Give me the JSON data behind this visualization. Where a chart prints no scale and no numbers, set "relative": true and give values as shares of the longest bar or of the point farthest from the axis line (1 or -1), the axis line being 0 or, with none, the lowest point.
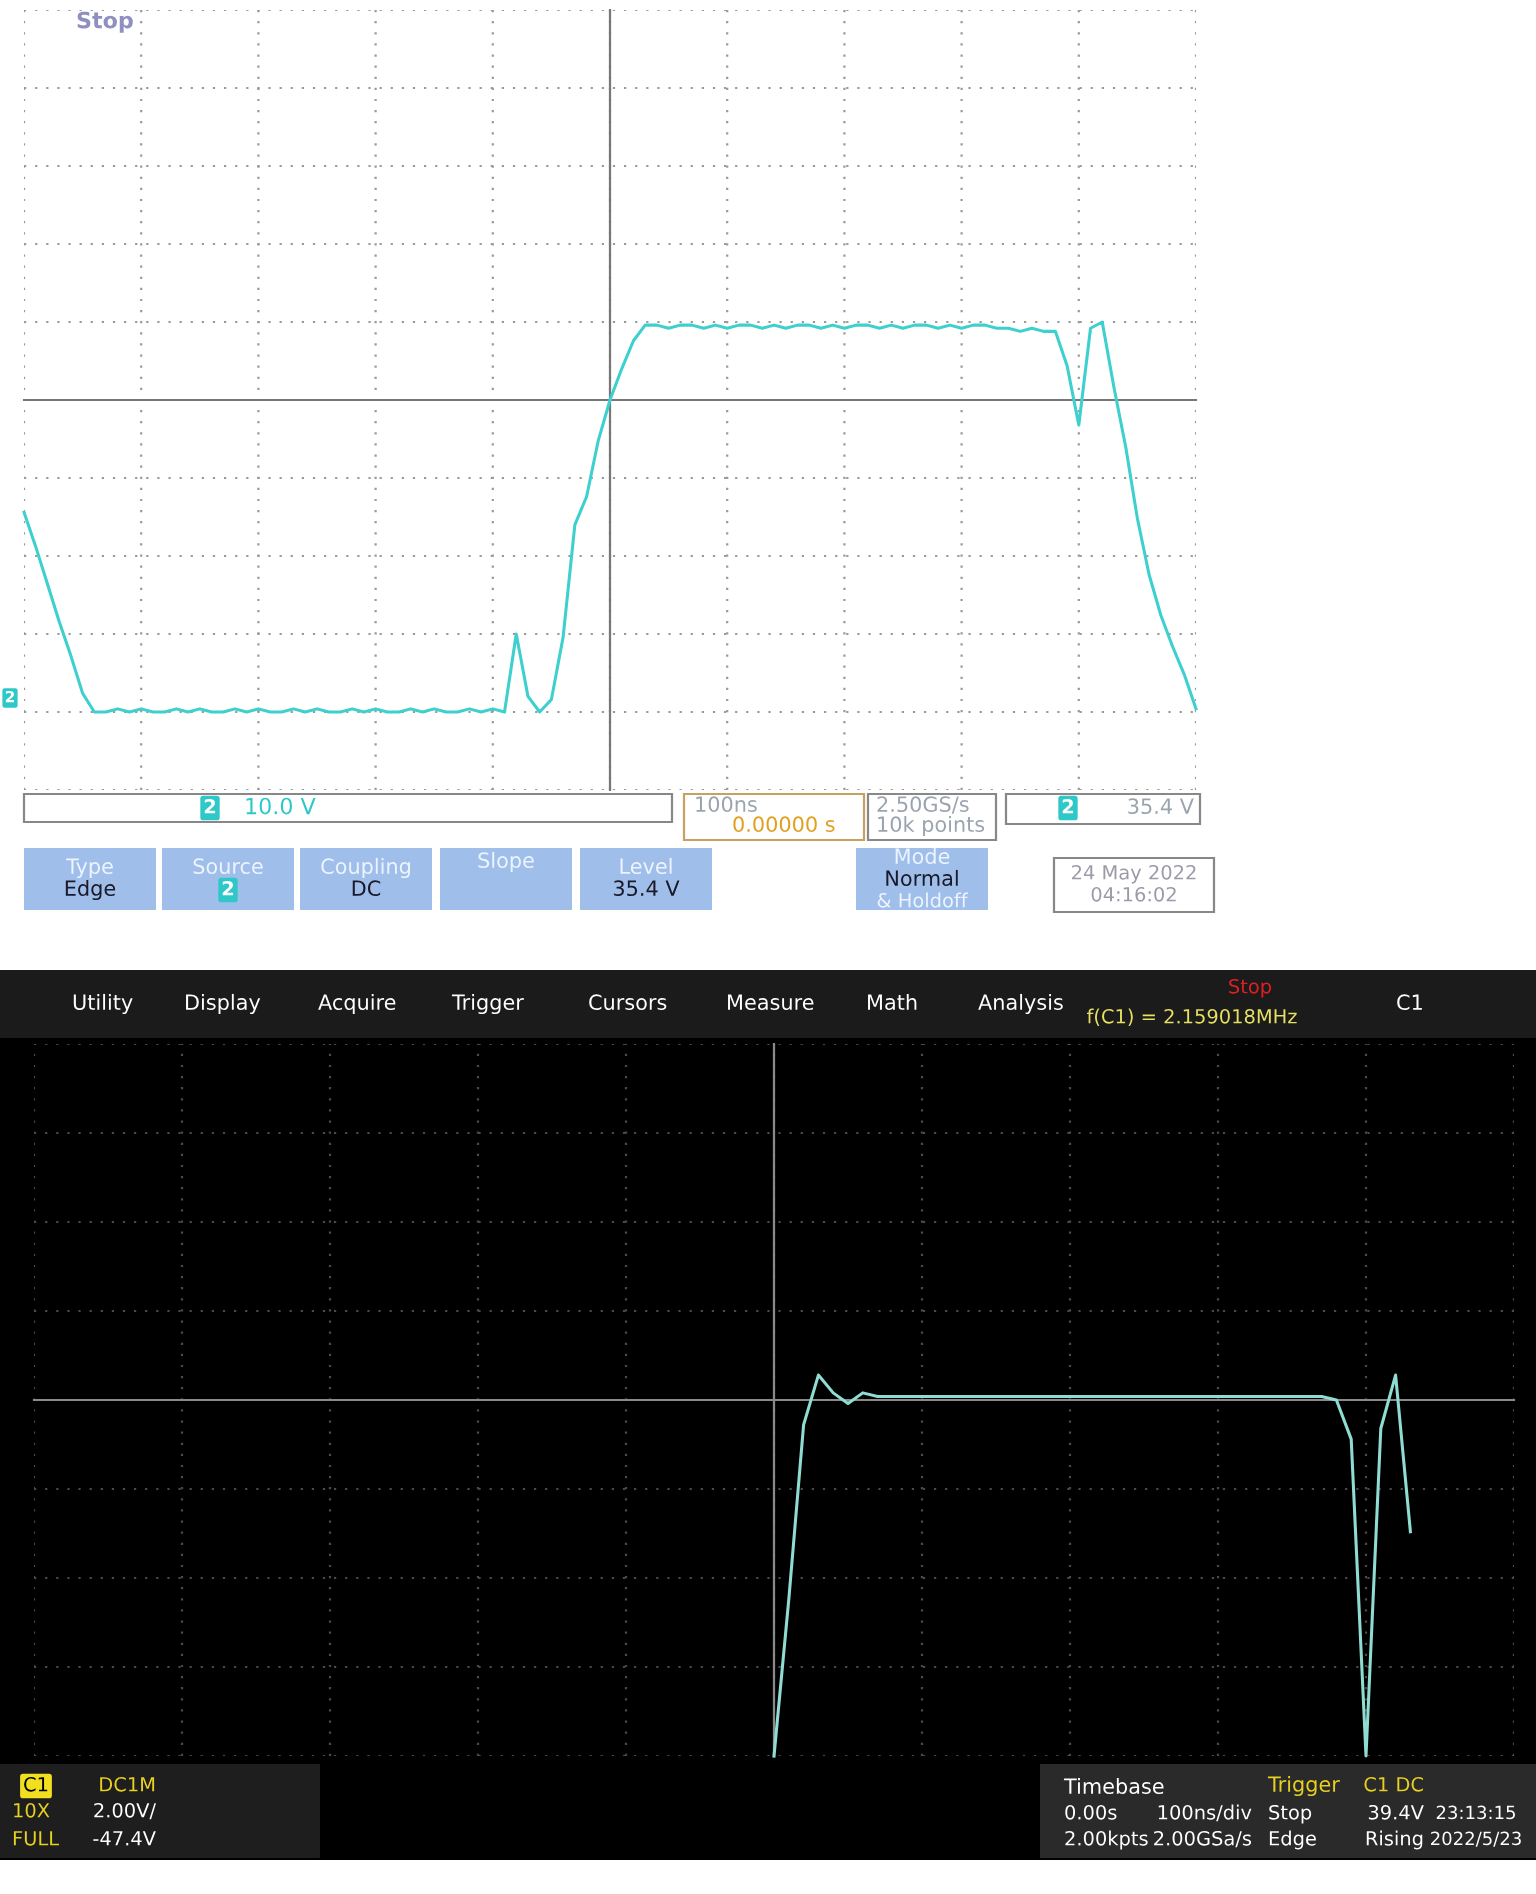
{
  "chart_data": [
    {
      "type": "line",
      "relative": true,
      "grid": true,
      "categories": [
        null,
        null,
        null,
        null,
        null,
        null,
        null,
        null,
        null,
        null,
        null,
        null,
        null,
        null,
        null,
        null,
        null,
        null,
        null,
        null,
        null,
        null,
        null,
        null,
        null,
        null,
        null,
        null,
        null,
        null,
        null,
        null,
        null,
        null,
        null,
        null,
        null,
        null,
        null,
        null,
        null,
        null,
        null,
        null,
        null,
        null,
        null,
        null,
        null,
        null,
        null,
        null,
        null,
        null,
        null,
        null,
        null,
        null,
        null,
        null,
        null,
        null,
        null,
        null,
        null,
        null,
        null,
        null,
        null,
        null,
        null,
        null,
        null,
        null,
        null,
        null,
        null,
        null,
        null,
        null,
        null,
        null,
        null,
        null,
        null,
        null,
        null,
        null,
        null,
        null,
        null,
        null,
        null,
        null,
        null,
        null,
        null,
        null,
        null,
        null,
        null
      ],
      "series": [
        {
          "color": "#3ecfcf",
          "values": [
            -0.36,
            -0.47,
            -0.59,
            -0.71,
            -0.82,
            -0.94,
            -1.0,
            -1.0,
            -0.99,
            -1.0,
            -0.99,
            -1.0,
            -1.0,
            -0.99,
            -1.0,
            -0.99,
            -1.0,
            -1.0,
            -0.99,
            -1.0,
            -0.99,
            -1.0,
            -1.0,
            -0.99,
            -1.0,
            -0.99,
            -1.0,
            -1.0,
            -0.99,
            -1.0,
            -0.99,
            -1.0,
            -1.0,
            -0.99,
            -1.0,
            -0.99,
            -1.0,
            -1.0,
            -0.99,
            -1.0,
            -0.99,
            -1.0,
            -0.75,
            -0.95,
            -1.0,
            -0.96,
            -0.76,
            -0.4,
            -0.31,
            -0.13,
            0.0,
            0.1,
            0.19,
            0.24,
            0.24,
            0.23,
            0.24,
            0.24,
            0.23,
            0.24,
            0.23,
            0.24,
            0.24,
            0.23,
            0.24,
            0.23,
            0.24,
            0.24,
            0.23,
            0.24,
            0.23,
            0.24,
            0.24,
            0.23,
            0.24,
            0.23,
            0.24,
            0.24,
            0.23,
            0.24,
            0.23,
            0.24,
            0.24,
            0.23,
            0.23,
            0.22,
            0.23,
            0.22,
            0.22,
            0.11,
            -0.08,
            0.23,
            0.25,
            0.04,
            -0.15,
            -0.38,
            -0.56,
            -0.69,
            -0.79,
            -0.88,
            -0.99
          ]
        }
      ],
      "annotations": [
        "Stop",
        "2",
        "10.0 V",
        "100ns",
        "0.00000 s",
        "2.50GS/s",
        "10k points",
        "2",
        "35.4 V",
        "Type",
        "Edge",
        "Source",
        "2",
        "Coupling",
        "DC",
        "Slope",
        "Level",
        "35.4 V",
        "Mode",
        "Normal",
        "& Holdoff",
        "24 May 2022",
        "04:16:02",
        "2"
      ]
    },
    {
      "type": "line",
      "relative": true,
      "grid": true,
      "categories": [
        null,
        null,
        null,
        null,
        null,
        null,
        null,
        null,
        null,
        null,
        null,
        null,
        null,
        null,
        null,
        null,
        null,
        null,
        null,
        null,
        null,
        null,
        null,
        null,
        null,
        null,
        null,
        null,
        null,
        null,
        null,
        null,
        null,
        null,
        null,
        null,
        null,
        null,
        null,
        null,
        null,
        null,
        null,
        null,
        null,
        null,
        null,
        null,
        null,
        null,
        null,
        null,
        null,
        null,
        null,
        null,
        null,
        null,
        null,
        null,
        null,
        null,
        null,
        null,
        null,
        null,
        null,
        null,
        null,
        null,
        null,
        null,
        null,
        null,
        null,
        null,
        null,
        null,
        null,
        null,
        null,
        null,
        null,
        null,
        null,
        null,
        null,
        null,
        null,
        null,
        null,
        null,
        null,
        null,
        null,
        null,
        null,
        null,
        null,
        null,
        null
      ],
      "series": [
        {
          "color": "#8fdcd2",
          "values": [
            null,
            null,
            null,
            null,
            null,
            null,
            null,
            null,
            null,
            null,
            null,
            null,
            null,
            null,
            null,
            null,
            null,
            null,
            null,
            null,
            null,
            null,
            null,
            null,
            null,
            null,
            null,
            null,
            null,
            null,
            null,
            null,
            null,
            null,
            null,
            null,
            null,
            null,
            null,
            null,
            null,
            null,
            null,
            null,
            null,
            null,
            null,
            null,
            null,
            null,
            -1.0,
            -0.56,
            -0.07,
            0.07,
            0.02,
            -0.01,
            0.02,
            0.01,
            0.01,
            0.01,
            0.01,
            0.01,
            0.01,
            0.01,
            0.01,
            0.01,
            0.01,
            0.01,
            0.01,
            0.01,
            0.01,
            0.01,
            0.01,
            0.01,
            0.01,
            0.01,
            0.01,
            0.01,
            0.01,
            0.01,
            0.01,
            0.01,
            0.01,
            0.01,
            0.01,
            0.01,
            0.01,
            0.01,
            0.0,
            -0.11,
            -1.0,
            -0.08,
            0.07,
            -0.37,
            null,
            null,
            null,
            null,
            null,
            null,
            null
          ]
        }
      ],
      "annotations": [
        "Utility",
        "Display",
        "Acquire",
        "Trigger",
        "Cursors",
        "Measure",
        "Math",
        "Analysis",
        "Stop",
        "f(C1) = 2.159018MHz",
        "C1",
        "C1",
        "DC1M",
        "10X",
        "2.00V/",
        "FULL",
        "-47.4V",
        "Timebase",
        "0.00s",
        "100ns/div",
        "2.00kpts",
        "2.00GSa/s",
        "Trigger",
        "C1 DC",
        "Stop",
        "39.4V",
        "Edge",
        "Rising",
        "23:13:15",
        "2022/5/23"
      ]
    }
  ]
}
